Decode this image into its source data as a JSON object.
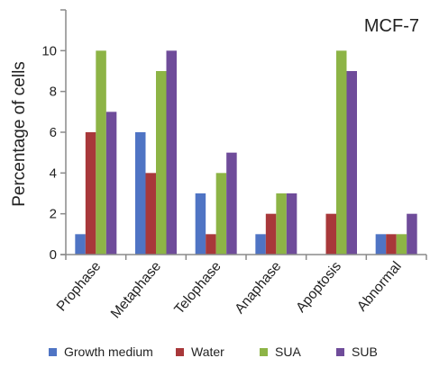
{
  "chart_data": {
    "type": "bar",
    "title": "MCF-7",
    "xlabel": "",
    "ylabel": "Percentage of cells",
    "ylim": [
      0,
      12
    ],
    "yticks": [
      0,
      2,
      4,
      6,
      8,
      10
    ],
    "grid": false,
    "legend_position": "bottom",
    "categories": [
      "Prophase",
      "Metaphase",
      "Telophase",
      "Anaphase",
      "Apoptosis",
      "Abnormal"
    ],
    "series": [
      {
        "name": "Growth medium",
        "color": "#4F74C4",
        "values": [
          1,
          6,
          3,
          1,
          0,
          1
        ]
      },
      {
        "name": "Water",
        "color": "#A8383A",
        "values": [
          6,
          4,
          1,
          2,
          2,
          1
        ]
      },
      {
        "name": "SUA",
        "color": "#8DB446",
        "values": [
          10,
          9,
          4,
          3,
          10,
          1
        ]
      },
      {
        "name": "SUB",
        "color": "#6F4C9A",
        "values": [
          7,
          10,
          5,
          3,
          9,
          2
        ]
      }
    ]
  }
}
